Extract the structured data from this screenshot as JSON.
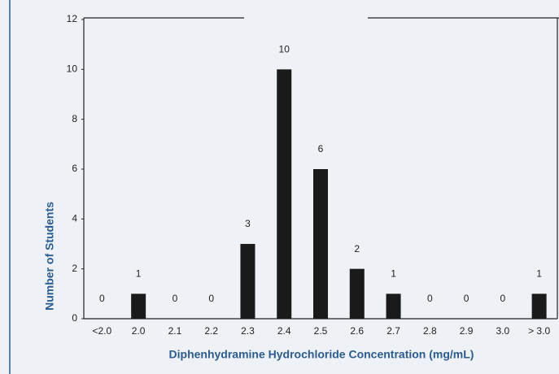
{
  "chart_data": {
    "type": "bar",
    "xlabel": "Diphenhydramine Hydrochloride Concentration (mg/mL)",
    "ylabel": "Number of Students",
    "categories": [
      "<2.0",
      "2.0",
      "2.1",
      "2.2",
      "2.3",
      "2.4",
      "2.5",
      "2.6",
      "2.7",
      "2.8",
      "2.9",
      "3.0",
      "> 3.0"
    ],
    "values": [
      0,
      1,
      0,
      0,
      3,
      10,
      6,
      2,
      1,
      0,
      0,
      0,
      1
    ],
    "color": "#1a1a1a",
    "ylim": [
      0,
      12
    ],
    "yticks": [
      0,
      2,
      4,
      6,
      8,
      10,
      12
    ]
  }
}
